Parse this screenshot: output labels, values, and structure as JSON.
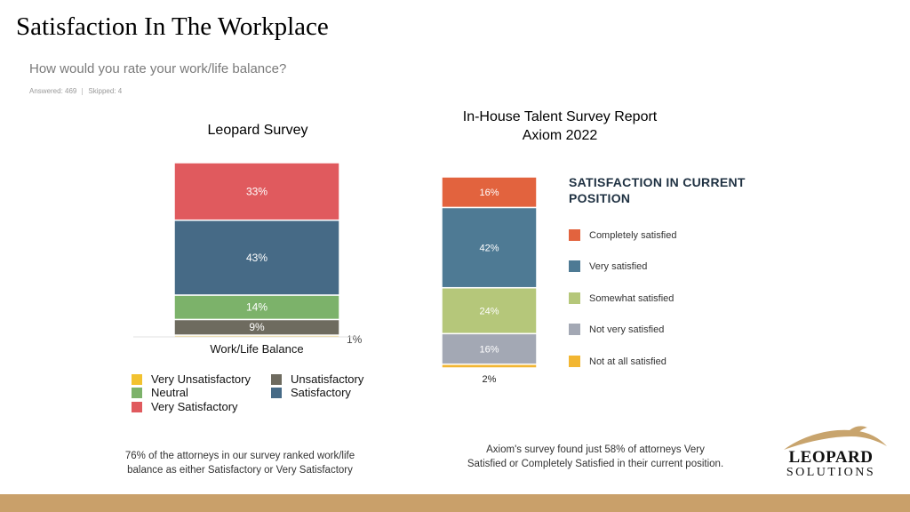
{
  "page": {
    "title": "Satisfaction In The Workplace",
    "question": "How would you rate your work/life balance?",
    "answered": "Answered: 469",
    "skipped": "Skipped: 4"
  },
  "chart_data": [
    {
      "type": "bar",
      "stacked": true,
      "title": "Leopard Survey",
      "categories": [
        "Work/Life Balance"
      ],
      "series": [
        {
          "name": "Very Unsatisfactory",
          "values": [
            1
          ],
          "label": "1%",
          "color": "#f2c230"
        },
        {
          "name": "Unsatisfactory",
          "values": [
            9
          ],
          "label": "9%",
          "color": "#6e6b5f"
        },
        {
          "name": "Neutral",
          "values": [
            14
          ],
          "label": "14%",
          "color": "#7cb26a"
        },
        {
          "name": "Satisfactory",
          "values": [
            43
          ],
          "label": "43%",
          "color": "#466a86"
        },
        {
          "name": "Very Satisfactory",
          "values": [
            33
          ],
          "label": "33%",
          "color": "#e05a5e"
        }
      ],
      "ylim": [
        0,
        100
      ],
      "legend": [
        {
          "name": "Very Unsatisfactory",
          "color": "#f2c230"
        },
        {
          "name": "Unsatisfactory",
          "color": "#6e6b5f"
        },
        {
          "name": "Neutral",
          "color": "#7cb26a"
        },
        {
          "name": "Satisfactory",
          "color": "#466a86"
        },
        {
          "name": "Very Satisfactory",
          "color": "#e05a5e"
        }
      ],
      "legend_placement": "bottom"
    },
    {
      "type": "bar",
      "stacked": true,
      "title_lines": [
        "In-House Talent Survey Report",
        "Axiom 2022"
      ],
      "legend_title": "SATISFACTION IN CURRENT POSITION",
      "series": [
        {
          "name": "Not at all satisfied",
          "values": [
            2
          ],
          "label": "2%",
          "color": "#f2b632"
        },
        {
          "name": "Not very satisfied",
          "values": [
            16
          ],
          "label": "16%",
          "color": "#a3a8b4"
        },
        {
          "name": "Somewhat satisfied",
          "values": [
            24
          ],
          "label": "24%",
          "color": "#b5c77a"
        },
        {
          "name": "Very satisfied",
          "values": [
            42
          ],
          "label": "42%",
          "color": "#4e7a94"
        },
        {
          "name": "Completely satisfied",
          "values": [
            16
          ],
          "label": "16%",
          "color": "#e2633e"
        }
      ],
      "ylim": [
        0,
        100
      ],
      "legend": [
        {
          "name": "Completely satisfied",
          "color": "#e2633e"
        },
        {
          "name": "Very satisfied",
          "color": "#4e7a94"
        },
        {
          "name": "Somewhat satisfied",
          "color": "#b5c77a"
        },
        {
          "name": "Not very satisfied",
          "color": "#a3a8b4"
        },
        {
          "name": "Not at all satisfied",
          "color": "#f2b632"
        }
      ],
      "legend_placement": "right"
    }
  ],
  "notes": {
    "left": [
      "76% of the attorneys in our survey ranked work/life",
      "balance as either Satisfactory or Very Satisfactory"
    ],
    "right": [
      "Axiom's survey found just 58% of attorneys Very",
      "Satisfied or Completely Satisfied in their current position."
    ]
  },
  "logo": {
    "main": "LEOPARD",
    "sub": "SOLUTIONS"
  },
  "colors": {
    "footer": "#c9a06a",
    "logo_gold": "#c8a46d"
  }
}
